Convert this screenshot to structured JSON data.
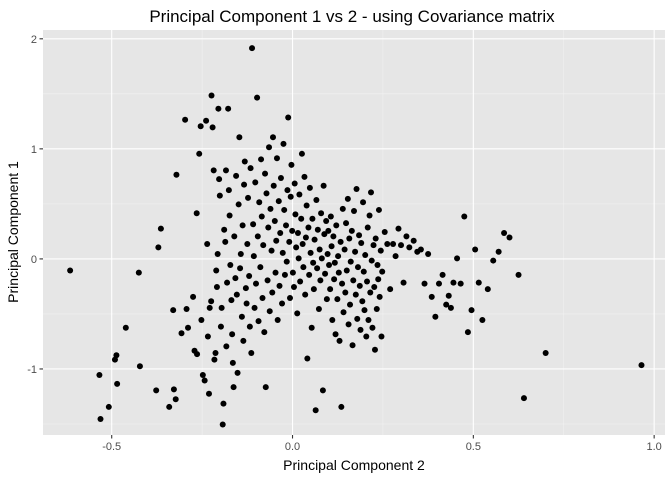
{
  "chart_data": {
    "type": "scatter",
    "title": "Principal Component 1 vs 2 - using Covariance matrix",
    "xlabel": "Principal Component 2",
    "ylabel": "Principal Component 1",
    "xlim": [
      -0.69,
      1.03
    ],
    "ylim": [
      -1.6,
      2.08
    ],
    "x_ticks": [
      -0.5,
      0.0,
      0.5,
      1.0
    ],
    "x_tick_labels": [
      "-0.5",
      "0.0",
      "0.5",
      "1.0"
    ],
    "y_ticks": [
      -1,
      0,
      1,
      2
    ],
    "y_tick_labels": [
      "-1",
      "0",
      "1",
      "2"
    ],
    "grid": true,
    "panel_background": "#e6e6e6",
    "point_color": "#000000",
    "points": [
      [
        -0.615,
        -0.105
      ],
      [
        -0.534,
        -1.055
      ],
      [
        -0.531,
        -1.455
      ],
      [
        -0.508,
        -1.345
      ],
      [
        -0.491,
        -0.915
      ],
      [
        -0.487,
        -0.875
      ],
      [
        -0.485,
        -1.135
      ],
      [
        -0.461,
        -0.625
      ],
      [
        -0.425,
        -0.125
      ],
      [
        -0.422,
        -0.975
      ],
      [
        -0.377,
        -1.195
      ],
      [
        -0.371,
        0.105
      ],
      [
        -0.364,
        0.275
      ],
      [
        -0.341,
        -1.345
      ],
      [
        -0.33,
        -0.465
      ],
      [
        -0.328,
        -1.185
      ],
      [
        -0.323,
        -1.275
      ],
      [
        -0.321,
        0.765
      ],
      [
        -0.307,
        -0.675
      ],
      [
        -0.297,
        1.265
      ],
      [
        -0.293,
        -0.455
      ],
      [
        -0.289,
        -0.625
      ],
      [
        -0.275,
        -0.345
      ],
      [
        -0.271,
        -0.835
      ],
      [
        -0.265,
        0.415
      ],
      [
        -0.264,
        -0.865
      ],
      [
        -0.258,
        0.955
      ],
      [
        -0.254,
        1.205
      ],
      [
        -0.252,
        -0.555
      ],
      [
        -0.248,
        -1.055
      ],
      [
        -0.243,
        -1.105
      ],
      [
        -0.239,
        1.255
      ],
      [
        -0.236,
        0.135
      ],
      [
        -0.234,
        -0.705
      ],
      [
        -0.231,
        -1.225
      ],
      [
        -0.229,
        -0.445
      ],
      [
        -0.225,
        -0.385
      ],
      [
        -0.224,
        1.485
      ],
      [
        -0.221,
        1.195
      ],
      [
        -0.218,
        0.805
      ],
      [
        -0.216,
        -0.915
      ],
      [
        -0.213,
        -0.855
      ],
      [
        -0.211,
        -0.105
      ],
      [
        -0.209,
        -0.255
      ],
      [
        -0.207,
        0.045
      ],
      [
        -0.205,
        1.365
      ],
      [
        -0.203,
        0.725
      ],
      [
        -0.201,
        0.575
      ],
      [
        -0.198,
        -0.615
      ],
      [
        -0.196,
        -0.445
      ],
      [
        -0.193,
        -1.505
      ],
      [
        -0.191,
        -1.315
      ],
      [
        -0.189,
        0.265
      ],
      [
        -0.186,
        0.155
      ],
      [
        -0.184,
        0.805
      ],
      [
        -0.183,
        -0.795
      ],
      [
        -0.181,
        -0.215
      ],
      [
        -0.178,
        1.365
      ],
      [
        -0.176,
        0.625
      ],
      [
        -0.174,
        0.395
      ],
      [
        -0.172,
        -0.055
      ],
      [
        -0.169,
        -0.375
      ],
      [
        -0.167,
        -0.685
      ],
      [
        -0.165,
        -0.945
      ],
      [
        -0.163,
        -1.165
      ],
      [
        -0.161,
        0.205
      ],
      [
        -0.158,
        -0.175
      ],
      [
        -0.156,
        0.755
      ],
      [
        -0.154,
        -0.325
      ],
      [
        -0.152,
        -1.035
      ],
      [
        -0.149,
        0.495
      ],
      [
        -0.147,
        1.105
      ],
      [
        -0.145,
        -0.085
      ],
      [
        -0.143,
        0.045
      ],
      [
        -0.14,
        -0.525
      ],
      [
        -0.138,
        0.305
      ],
      [
        -0.136,
        -0.745
      ],
      [
        -0.134,
        0.675
      ],
      [
        -0.132,
        0.885
      ],
      [
        -0.129,
        -0.265
      ],
      [
        -0.127,
        -0.405
      ],
      [
        -0.125,
        0.135
      ],
      [
        -0.123,
        0.555
      ],
      [
        -0.12,
        -0.155
      ],
      [
        -0.118,
        -0.615
      ],
      [
        -0.116,
        0.825
      ],
      [
        -0.114,
        -0.855
      ],
      [
        -0.112,
        1.915
      ],
      [
        -0.109,
        0.315
      ],
      [
        -0.107,
        0.025
      ],
      [
        -0.105,
        -0.445
      ],
      [
        -0.103,
        0.695
      ],
      [
        -0.101,
        -0.225
      ],
      [
        -0.098,
        1.465
      ],
      [
        -0.096,
        0.205
      ],
      [
        -0.094,
        -0.565
      ],
      [
        -0.092,
        0.515
      ],
      [
        -0.089,
        -0.075
      ],
      [
        -0.087,
        0.905
      ],
      [
        -0.085,
        0.385
      ],
      [
        -0.083,
        -0.355
      ],
      [
        -0.081,
        0.125
      ],
      [
        -0.078,
        -0.665
      ],
      [
        -0.076,
        0.775
      ],
      [
        -0.074,
        -1.165
      ],
      [
        -0.072,
        0.595
      ],
      [
        -0.069,
        -0.195
      ],
      [
        -0.067,
        0.285
      ],
      [
        -0.065,
        1.015
      ],
      [
        -0.063,
        -0.475
      ],
      [
        -0.061,
        0.455
      ],
      [
        -0.058,
        0.075
      ],
      [
        -0.056,
        -0.305
      ],
      [
        -0.054,
        1.105
      ],
      [
        -0.052,
        0.665
      ],
      [
        -0.049,
        0.345
      ],
      [
        -0.047,
        -0.125
      ],
      [
        -0.045,
        0.165
      ],
      [
        -0.043,
        0.915
      ],
      [
        -0.041,
        -0.555
      ],
      [
        -0.038,
        0.525
      ],
      [
        -0.036,
        -0.245
      ],
      [
        -0.034,
        0.235
      ],
      [
        -0.032,
        0.735
      ],
      [
        -0.029,
        -0.405
      ],
      [
        -0.027,
        0.055
      ],
      [
        -0.025,
        1.045
      ],
      [
        -0.023,
        0.445
      ],
      [
        -0.021,
        -0.145
      ],
      [
        -0.018,
        0.305
      ],
      [
        -0.016,
        -0.025
      ],
      [
        -0.014,
        0.625
      ],
      [
        -0.012,
        1.285
      ],
      [
        -0.009,
        0.155
      ],
      [
        -0.007,
        -0.355
      ],
      [
        -0.005,
        0.565
      ],
      [
        -0.003,
        0.855
      ],
      [
        -0.001,
        0.255
      ],
      [
        0.001,
        -0.125
      ],
      [
        0.004,
        -0.255
      ],
      [
        0.006,
        0.685
      ],
      [
        0.008,
        0.405
      ],
      [
        0.01,
        0.105
      ],
      [
        0.013,
        -0.495
      ],
      [
        0.015,
        0.235
      ],
      [
        0.017,
        0.005
      ],
      [
        0.019,
        0.585
      ],
      [
        0.021,
        -0.205
      ],
      [
        0.024,
        0.365
      ],
      [
        0.026,
        0.955
      ],
      [
        0.028,
        0.135
      ],
      [
        0.03,
        -0.075
      ],
      [
        0.033,
        0.745
      ],
      [
        0.035,
        -0.325
      ],
      [
        0.037,
        0.195
      ],
      [
        0.039,
        0.485
      ],
      [
        0.041,
        -0.905
      ],
      [
        0.044,
        0.285
      ],
      [
        0.046,
        -0.145
      ],
      [
        0.048,
        0.645
      ],
      [
        0.05,
        0.055
      ],
      [
        0.053,
        -0.625
      ],
      [
        0.055,
        0.365
      ],
      [
        0.057,
        -0.035
      ],
      [
        0.059,
        -0.275
      ],
      [
        0.061,
        0.175
      ],
      [
        0.064,
        -1.375
      ],
      [
        0.066,
        0.535
      ],
      [
        0.068,
        -0.085
      ],
      [
        0.07,
        0.265
      ],
      [
        0.073,
        -0.455
      ],
      [
        0.075,
        0.085
      ],
      [
        0.077,
        -0.195
      ],
      [
        0.079,
        0.415
      ],
      [
        0.081,
        0.005
      ],
      [
        0.084,
        -1.195
      ],
      [
        0.086,
        0.665
      ],
      [
        0.088,
        0.225
      ],
      [
        0.09,
        -0.135
      ],
      [
        0.093,
        0.345
      ],
      [
        0.095,
        -0.365
      ],
      [
        0.097,
        0.045
      ],
      [
        0.099,
        0.255
      ],
      [
        0.101,
        -0.055
      ],
      [
        0.104,
        -0.275
      ],
      [
        0.106,
        0.385
      ],
      [
        0.108,
        0.115
      ],
      [
        0.11,
        -0.555
      ],
      [
        0.113,
        0.205
      ],
      [
        0.115,
        -0.185
      ],
      [
        0.117,
        -0.035
      ],
      [
        0.119,
        -0.685
      ],
      [
        0.121,
        0.305
      ],
      [
        0.124,
        -0.365
      ],
      [
        0.126,
        0.025
      ],
      [
        0.128,
        -0.125
      ],
      [
        0.13,
        -0.745
      ],
      [
        0.133,
        0.155
      ],
      [
        0.135,
        -1.345
      ],
      [
        0.137,
        -0.225
      ],
      [
        0.139,
        0.455
      ],
      [
        0.141,
        -0.485
      ],
      [
        0.144,
        0.085
      ],
      [
        0.146,
        -0.305
      ],
      [
        0.148,
        0.325
      ],
      [
        0.15,
        -0.105
      ],
      [
        0.153,
        0.545
      ],
      [
        0.155,
        -0.595
      ],
      [
        0.157,
        0.185
      ],
      [
        0.159,
        -0.415
      ],
      [
        0.161,
        -0.025
      ],
      [
        0.164,
        0.255
      ],
      [
        0.166,
        -0.785
      ],
      [
        0.168,
        -0.195
      ],
      [
        0.17,
        0.435
      ],
      [
        0.173,
        0.065
      ],
      [
        0.175,
        -0.325
      ],
      [
        0.177,
        0.635
      ],
      [
        0.179,
        -0.545
      ],
      [
        0.181,
        -0.075
      ],
      [
        0.184,
        0.215
      ],
      [
        0.186,
        -0.245
      ],
      [
        0.188,
        -0.645
      ],
      [
        0.19,
        0.145
      ],
      [
        0.193,
        -0.385
      ],
      [
        0.195,
        0.515
      ],
      [
        0.197,
        -0.115
      ],
      [
        0.199,
        -0.465
      ],
      [
        0.201,
        0.035
      ],
      [
        0.204,
        -0.705
      ],
      [
        0.206,
        -0.205
      ],
      [
        0.208,
        0.285
      ],
      [
        0.21,
        -0.555
      ],
      [
        0.213,
        0.395
      ],
      [
        0.215,
        -0.305
      ],
      [
        0.217,
        0.605
      ],
      [
        0.219,
        -0.015
      ],
      [
        0.221,
        -0.625
      ],
      [
        0.224,
        0.125
      ],
      [
        0.226,
        -0.255
      ],
      [
        0.228,
        -0.825
      ],
      [
        0.23,
        0.185
      ],
      [
        0.233,
        -0.455
      ],
      [
        0.235,
        -0.055
      ],
      [
        0.237,
        -0.185
      ],
      [
        0.239,
        0.445
      ],
      [
        0.241,
        -0.345
      ],
      [
        0.244,
        0.075
      ],
      [
        0.246,
        -0.705
      ],
      [
        0.248,
        -0.115
      ],
      [
        0.255,
        0.245
      ],
      [
        0.262,
        0.135
      ],
      [
        0.27,
        -0.275
      ],
      [
        0.278,
        0.135
      ],
      [
        0.285,
        0.025
      ],
      [
        0.293,
        0.275
      ],
      [
        0.3,
        0.125
      ],
      [
        0.307,
        -0.215
      ],
      [
        0.315,
        0.205
      ],
      [
        0.323,
        0.105
      ],
      [
        0.335,
        0.165
      ],
      [
        0.345,
        0.065
      ],
      [
        0.355,
        0.085
      ],
      [
        0.365,
        -0.225
      ],
      [
        0.375,
        0.045
      ],
      [
        0.385,
        -0.345
      ],
      [
        0.395,
        -0.525
      ],
      [
        0.405,
        -0.225
      ],
      [
        0.415,
        -0.145
      ],
      [
        0.425,
        -0.415
      ],
      [
        0.432,
        -0.335
      ],
      [
        0.438,
        -0.445
      ],
      [
        0.445,
        -0.215
      ],
      [
        0.455,
        0.005
      ],
      [
        0.465,
        -0.225
      ],
      [
        0.475,
        0.385
      ],
      [
        0.485,
        -0.665
      ],
      [
        0.495,
        -0.465
      ],
      [
        0.505,
        0.085
      ],
      [
        0.515,
        -0.215
      ],
      [
        0.525,
        -0.555
      ],
      [
        0.54,
        -0.275
      ],
      [
        0.555,
        -0.015
      ],
      [
        0.57,
        0.065
      ],
      [
        0.585,
        0.235
      ],
      [
        0.6,
        0.195
      ],
      [
        0.625,
        -0.145
      ],
      [
        0.64,
        -1.265
      ],
      [
        0.7,
        -0.855
      ],
      [
        0.965,
        -0.965
      ]
    ]
  }
}
